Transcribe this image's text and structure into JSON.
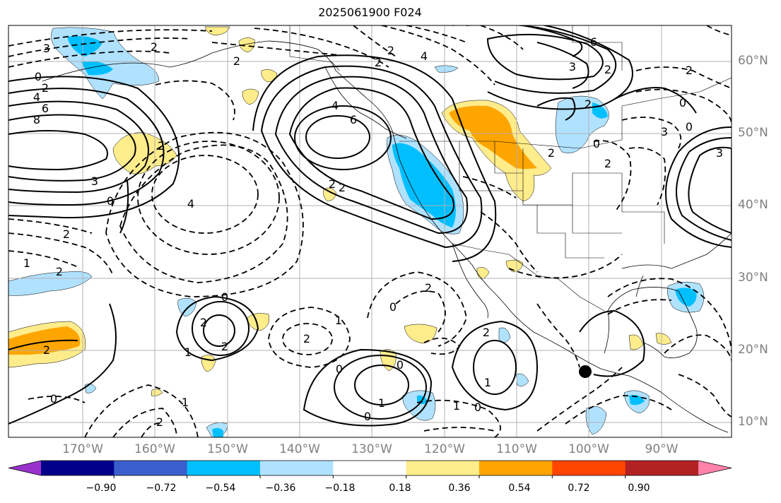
{
  "title": "2025061900 F024",
  "lat_labels": [
    "60°N",
    "50°N",
    "40°N",
    "30°N",
    "20°N",
    "10°N"
  ],
  "lon_labels": [
    "170°W",
    "160°W",
    "150°W",
    "140°W",
    "130°W",
    "120°W",
    "110°W",
    "100°W",
    "90°W"
  ],
  "colorbar": {
    "colors": [
      "#9932cc",
      "#00008b",
      "#3a5fcd",
      "#00bfff",
      "#b0e2ff",
      "#ffffff",
      "#ffec8b",
      "#ffa500",
      "#ff4500",
      "#b22222",
      "#ff82ab"
    ],
    "tick_labels": [
      "−0.90",
      "−0.72",
      "−0.54",
      "−0.36",
      "−0.18",
      "0.18",
      "0.36",
      "0.54",
      "0.72",
      "0.90"
    ],
    "extend": "both"
  },
  "contour_labels": [
    "3",
    "2",
    "0",
    "2",
    "4",
    "6",
    "8",
    "2",
    "2",
    "3",
    "0",
    "4",
    "4",
    "6",
    "2",
    "2",
    "2",
    "2",
    "4",
    "6",
    "2",
    "3",
    "0",
    "2",
    "3",
    "0",
    "3",
    "2",
    "2",
    "2",
    "0",
    "2",
    "1",
    "2",
    "2",
    "0",
    "2",
    "2",
    "1",
    "2",
    "0",
    "1",
    "0",
    "0",
    "0",
    "1",
    "2",
    "0",
    "2",
    "1",
    "1",
    "0",
    "2",
    "1"
  ],
  "marker": "storm-center-dot"
}
